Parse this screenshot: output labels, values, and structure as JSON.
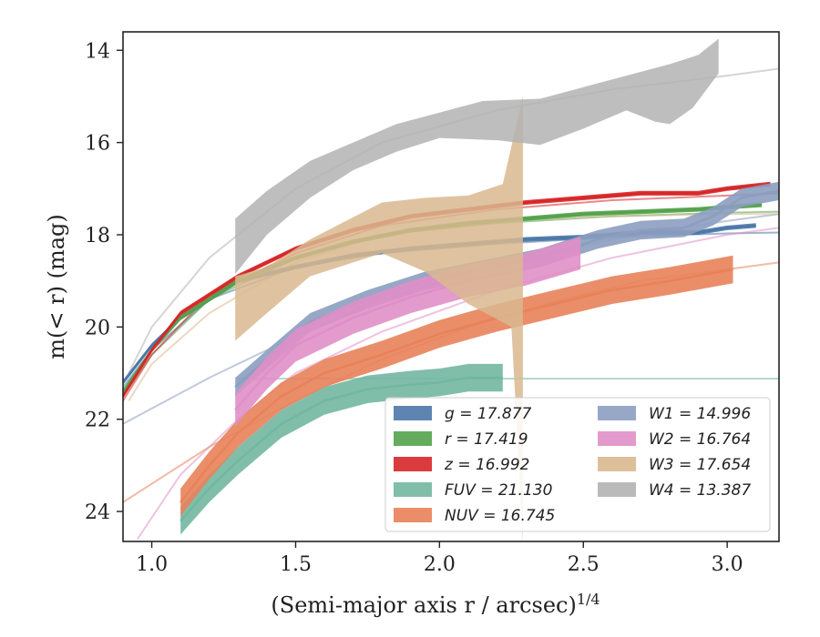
{
  "chart_data": {
    "type": "line",
    "title": "",
    "xlabel": "(Semi-major axis r / arcsec)",
    "xlabel_exponent": "1/4",
    "ylabel": "m(< r) (mag)",
    "xlim": [
      0.9,
      3.18
    ],
    "ylim": [
      24.65,
      13.6
    ],
    "y_inverted": true,
    "grid": false,
    "legend_position": "lower-right",
    "x_ticks": [
      "1.0",
      "1.5",
      "2.0",
      "2.5",
      "3.0"
    ],
    "y_ticks": [
      "14",
      "16",
      "18",
      "20",
      "22",
      "24"
    ],
    "series": [
      {
        "name": "g",
        "label": "g = 17.877",
        "color": "#4c78a8",
        "data": [
          [
            0.9,
            21.2
          ],
          [
            1.0,
            20.4
          ],
          [
            1.1,
            19.8
          ],
          [
            1.3,
            19.0
          ],
          [
            1.5,
            18.7
          ],
          [
            1.7,
            18.45
          ],
          [
            1.9,
            18.3
          ],
          [
            2.1,
            18.2
          ],
          [
            2.3,
            18.1
          ],
          [
            2.5,
            18.05
          ],
          [
            2.7,
            17.95
          ],
          [
            2.9,
            17.95
          ],
          [
            3.0,
            17.85
          ],
          [
            3.1,
            17.8
          ]
        ],
        "model": [
          [
            0.9,
            21.3
          ],
          [
            1.0,
            20.5
          ],
          [
            1.2,
            19.4
          ],
          [
            1.5,
            18.7
          ],
          [
            1.8,
            18.4
          ],
          [
            2.2,
            18.2
          ],
          [
            2.6,
            18.05
          ],
          [
            3.0,
            17.97
          ],
          [
            3.18,
            17.95
          ]
        ],
        "band_width": 0.05
      },
      {
        "name": "r",
        "label": "r = 17.419",
        "color": "#54a24b",
        "data": [
          [
            0.9,
            21.4
          ],
          [
            1.0,
            20.5
          ],
          [
            1.1,
            19.8
          ],
          [
            1.3,
            19.0
          ],
          [
            1.5,
            18.5
          ],
          [
            1.7,
            18.15
          ],
          [
            1.9,
            17.9
          ],
          [
            2.1,
            17.75
          ],
          [
            2.3,
            17.65
          ],
          [
            2.5,
            17.55
          ],
          [
            2.7,
            17.5
          ],
          [
            2.9,
            17.45
          ],
          [
            3.0,
            17.4
          ],
          [
            3.12,
            17.35
          ]
        ],
        "model": [
          [
            0.9,
            21.5
          ],
          [
            1.0,
            20.6
          ],
          [
            1.2,
            19.4
          ],
          [
            1.5,
            18.5
          ],
          [
            1.8,
            18.0
          ],
          [
            2.2,
            17.75
          ],
          [
            2.6,
            17.6
          ],
          [
            3.0,
            17.52
          ],
          [
            3.18,
            17.5
          ]
        ],
        "band_width": 0.05
      },
      {
        "name": "z",
        "label": "z = 16.992",
        "color": "#d62728",
        "data": [
          [
            0.9,
            21.5
          ],
          [
            1.0,
            20.5
          ],
          [
            1.1,
            19.7
          ],
          [
            1.3,
            18.9
          ],
          [
            1.5,
            18.3
          ],
          [
            1.7,
            17.9
          ],
          [
            1.9,
            17.6
          ],
          [
            2.1,
            17.45
          ],
          [
            2.3,
            17.3
          ],
          [
            2.5,
            17.2
          ],
          [
            2.7,
            17.1
          ],
          [
            2.9,
            17.1
          ],
          [
            3.0,
            17.0
          ],
          [
            3.15,
            16.9
          ]
        ],
        "model": [
          [
            0.9,
            21.6
          ],
          [
            1.0,
            20.6
          ],
          [
            1.2,
            19.3
          ],
          [
            1.5,
            18.4
          ],
          [
            1.8,
            17.8
          ],
          [
            2.2,
            17.45
          ],
          [
            2.6,
            17.25
          ],
          [
            3.0,
            17.15
          ],
          [
            3.18,
            17.1
          ]
        ],
        "band_width": 0.05
      },
      {
        "name": "FUV",
        "label": "FUV = 21.130",
        "color": "#72b7a1",
        "data": [
          [
            1.1,
            24.2
          ],
          [
            1.2,
            23.5
          ],
          [
            1.3,
            22.9
          ],
          [
            1.45,
            22.1
          ],
          [
            1.6,
            21.6
          ],
          [
            1.75,
            21.35
          ],
          [
            1.9,
            21.25
          ],
          [
            2.0,
            21.2
          ],
          [
            2.1,
            21.1
          ],
          [
            2.22,
            21.1
          ]
        ],
        "model": [
          [
            1.3,
            21.12
          ],
          [
            3.18,
            21.12
          ]
        ],
        "band_width": 0.3
      },
      {
        "name": "NUV",
        "label": "NUV = 16.745",
        "color": "#e8825a",
        "data": [
          [
            1.1,
            23.8
          ],
          [
            1.2,
            23.0
          ],
          [
            1.3,
            22.3
          ],
          [
            1.45,
            21.5
          ],
          [
            1.6,
            21.0
          ],
          [
            1.8,
            20.6
          ],
          [
            2.0,
            20.15
          ],
          [
            2.2,
            19.8
          ],
          [
            2.4,
            19.5
          ],
          [
            2.6,
            19.2
          ],
          [
            2.8,
            19.0
          ],
          [
            3.02,
            18.75
          ]
        ],
        "model": [
          [
            0.9,
            23.8
          ],
          [
            1.2,
            22.6
          ],
          [
            1.5,
            21.6
          ],
          [
            1.8,
            20.7
          ],
          [
            2.1,
            20.0
          ],
          [
            2.4,
            19.45
          ],
          [
            2.7,
            19.0
          ],
          [
            3.0,
            18.75
          ],
          [
            3.18,
            18.6
          ]
        ],
        "band_width": 0.3
      },
      {
        "name": "W1",
        "label": "W1 = 14.996",
        "color": "#8c9dc0",
        "data": [
          [
            1.29,
            21.3
          ],
          [
            1.4,
            20.7
          ],
          [
            1.55,
            19.9
          ],
          [
            1.75,
            19.4
          ],
          [
            1.95,
            19.0
          ],
          [
            2.15,
            18.75
          ],
          [
            2.35,
            18.5
          ],
          [
            2.55,
            18.1
          ],
          [
            2.7,
            17.9
          ],
          [
            2.85,
            17.85
          ],
          [
            2.95,
            17.6
          ],
          [
            3.05,
            17.2
          ],
          [
            3.18,
            17.05
          ]
        ],
        "model": [
          [
            0.9,
            22.1
          ],
          [
            1.2,
            21.1
          ],
          [
            1.5,
            20.2
          ],
          [
            1.8,
            19.4
          ],
          [
            2.2,
            18.65
          ],
          [
            2.6,
            18.1
          ],
          [
            3.0,
            17.7
          ],
          [
            3.18,
            17.55
          ]
        ],
        "band_width": 0.2
      },
      {
        "name": "W2",
        "label": "W2 = 16.764",
        "color": "#e08fc7",
        "data": [
          [
            1.29,
            21.8
          ],
          [
            1.4,
            21.0
          ],
          [
            1.5,
            20.4
          ],
          [
            1.7,
            19.8
          ],
          [
            1.9,
            19.35
          ],
          [
            2.1,
            19.0
          ],
          [
            2.3,
            18.75
          ],
          [
            2.49,
            18.4
          ]
        ],
        "model": [
          [
            0.95,
            24.6
          ],
          [
            1.1,
            23.2
          ],
          [
            1.3,
            22.0
          ],
          [
            1.5,
            21.0
          ],
          [
            1.8,
            20.1
          ],
          [
            2.2,
            19.2
          ],
          [
            2.6,
            18.5
          ],
          [
            3.0,
            18.0
          ],
          [
            3.18,
            17.85
          ]
        ],
        "band_width": 0.35
      },
      {
        "name": "W3",
        "label": "W3 = 17.654",
        "color": "#d9b98f",
        "data": [
          [
            1.29,
            19.6
          ],
          [
            1.4,
            19.2
          ],
          [
            1.55,
            18.6
          ],
          [
            1.8,
            17.8
          ],
          [
            2.0,
            17.6
          ],
          [
            2.15,
            17.5
          ],
          [
            2.25,
            17.0
          ],
          [
            2.29,
            16.0
          ]
        ],
        "lower": [
          [
            1.29,
            20.3
          ],
          [
            1.4,
            19.7
          ],
          [
            1.55,
            18.9
          ],
          [
            1.8,
            18.4
          ],
          [
            1.95,
            18.8
          ],
          [
            2.1,
            19.5
          ],
          [
            2.25,
            20.0
          ],
          [
            2.29,
            24.65
          ]
        ],
        "upper": [
          [
            1.29,
            18.9
          ],
          [
            1.4,
            18.7
          ],
          [
            1.55,
            18.1
          ],
          [
            1.8,
            17.3
          ],
          [
            1.95,
            17.2
          ],
          [
            2.1,
            17.15
          ],
          [
            2.22,
            16.9
          ],
          [
            2.29,
            15.0
          ]
        ],
        "model": [
          [
            0.92,
            21.6
          ],
          [
            1.0,
            20.8
          ],
          [
            1.2,
            19.7
          ],
          [
            1.5,
            18.6
          ],
          [
            1.8,
            18.0
          ],
          [
            2.2,
            17.7
          ],
          [
            2.6,
            17.6
          ],
          [
            3.0,
            17.55
          ],
          [
            3.18,
            17.55
          ]
        ]
      },
      {
        "name": "W4",
        "label": "W4 = 13.387",
        "color": "#b3b3b3",
        "data": [
          [
            1.29,
            18.2
          ],
          [
            1.4,
            17.5
          ],
          [
            1.55,
            16.8
          ],
          [
            1.7,
            16.3
          ],
          [
            1.85,
            15.9
          ],
          [
            2.0,
            15.65
          ],
          [
            2.2,
            15.6
          ],
          [
            2.4,
            15.5
          ],
          [
            2.6,
            15.3
          ],
          [
            2.75,
            15.1
          ],
          [
            2.85,
            14.9
          ],
          [
            2.97,
            14.5
          ]
        ],
        "lower": [
          [
            1.29,
            18.85
          ],
          [
            1.4,
            18.0
          ],
          [
            1.55,
            17.2
          ],
          [
            1.7,
            16.6
          ],
          [
            1.85,
            16.2
          ],
          [
            2.0,
            15.9
          ],
          [
            2.2,
            15.95
          ],
          [
            2.35,
            16.05
          ],
          [
            2.5,
            15.7
          ],
          [
            2.65,
            15.3
          ],
          [
            2.75,
            15.55
          ],
          [
            2.8,
            15.6
          ],
          [
            2.88,
            15.25
          ],
          [
            2.97,
            14.5
          ]
        ],
        "upper": [
          [
            1.29,
            17.65
          ],
          [
            1.4,
            17.05
          ],
          [
            1.55,
            16.4
          ],
          [
            1.7,
            16.0
          ],
          [
            1.85,
            15.6
          ],
          [
            2.0,
            15.35
          ],
          [
            2.15,
            15.1
          ],
          [
            2.35,
            15.05
          ],
          [
            2.5,
            14.8
          ],
          [
            2.65,
            14.55
          ],
          [
            2.8,
            14.3
          ],
          [
            2.9,
            14.1
          ],
          [
            2.97,
            13.75
          ]
        ],
        "model": [
          [
            0.92,
            21.0
          ],
          [
            1.0,
            20.0
          ],
          [
            1.2,
            18.5
          ],
          [
            1.5,
            17.0
          ],
          [
            1.8,
            16.0
          ],
          [
            2.2,
            15.3
          ],
          [
            2.6,
            14.85
          ],
          [
            3.0,
            14.55
          ],
          [
            3.18,
            14.4
          ]
        ]
      }
    ],
    "legend": [
      {
        "series": "g",
        "text": "g = 17.877",
        "column": 0
      },
      {
        "series": "r",
        "text": "r = 17.419",
        "column": 0
      },
      {
        "series": "z",
        "text": "z = 16.992",
        "column": 0
      },
      {
        "series": "FUV",
        "text": "FUV = 21.130",
        "column": 0
      },
      {
        "series": "NUV",
        "text": "NUV = 16.745",
        "column": 0
      },
      {
        "series": "W1",
        "text": "W1 = 14.996",
        "column": 1
      },
      {
        "series": "W2",
        "text": "W2 = 16.764",
        "column": 1
      },
      {
        "series": "W3",
        "text": "W3 = 17.654",
        "column": 1
      },
      {
        "series": "W4",
        "text": "W4 = 13.387",
        "column": 1
      }
    ]
  }
}
